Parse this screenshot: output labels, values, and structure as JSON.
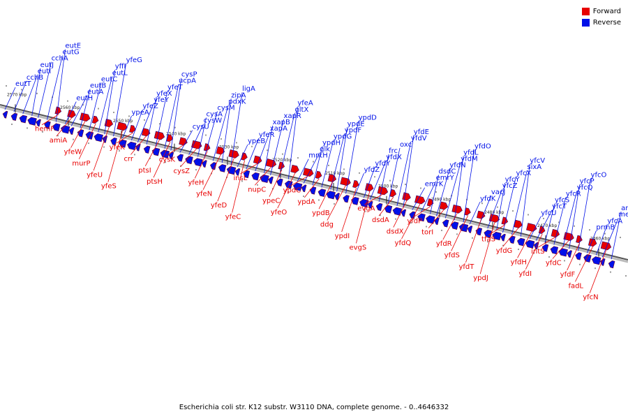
{
  "caption": "Escherichia coli str. K12 substr. W3110 DNA, complete genome. - 0..4646332",
  "legend": {
    "forward_label": "Forward",
    "reverse_label": "Reverse",
    "forward_color": "#e80000",
    "reverse_color": "#0010e8"
  },
  "ticks": [
    "2570 kbp",
    "2560 kbp",
    "2550 kbp",
    "2540 kbp",
    "2530 kbp",
    "2520 kbp",
    "2510 kbp",
    "2500 kbp",
    "2490 kbp",
    "2480 kbp",
    "2470 kbp",
    "2460 kbp"
  ],
  "reverse_genes": [
    "eutT",
    "cchB",
    "eutI",
    "eutJ",
    "cchA",
    "eutG",
    "eutE",
    "eutH",
    "eutA",
    "eutB",
    "eutC",
    "eutL",
    "yffI",
    "yfeG",
    "ypeA",
    "yfeZ",
    "yfeY",
    "yfeX",
    "yfeT",
    "ucpA",
    "cysP",
    "cysU",
    "cysW",
    "cysA",
    "cysM",
    "pdxK",
    "zipA",
    "ligA",
    "ypeB",
    "yfeR",
    "xapA",
    "xapB",
    "xapR",
    "gltX",
    "yfeA",
    "mntH",
    "glk",
    "ypdH",
    "ypdG",
    "ypdF",
    "ypdE",
    "ypdD",
    "yfdZ",
    "yfdY",
    "yfdX",
    "frc",
    "oxc",
    "yfdV",
    "yfdE",
    "emrK",
    "emrY",
    "dsdC",
    "yfdN",
    "yfdM",
    "yfdL",
    "yfdO",
    "yfdK",
    "vacJ",
    "yfcZ",
    "yfcY",
    "yfcX",
    "sixA",
    "yfcV",
    "yfcU",
    "yfcT",
    "yfcS",
    "yfcR",
    "yfcQ",
    "yfcP",
    "yfcO",
    "prmB",
    "yfcA",
    "mepA",
    "aroC"
  ],
  "forward_genes": [
    "hemF",
    "amiA",
    "yfeW",
    "murP",
    "yfeU",
    "yfeS",
    "yfeK",
    "crr",
    "ptsI",
    "ptsH",
    "cysK",
    "cysZ",
    "yfeH",
    "yfeN",
    "yfeD",
    "yfeC",
    "insL",
    "nupC",
    "ypeC",
    "yfeO",
    "ypdC",
    "ypdA",
    "ypdB",
    "ddg",
    "ypdI",
    "evgS",
    "evgA",
    "dsdA",
    "dsdX",
    "yfdQ",
    "yfdP",
    "torI",
    "yfdR",
    "yfdS",
    "yfdT",
    "ypdJ",
    "tfaS",
    "yfdG",
    "yfdH",
    "yfdI",
    "intS",
    "yfdC",
    "yfdF",
    "fadL",
    "yfcN"
  ]
}
